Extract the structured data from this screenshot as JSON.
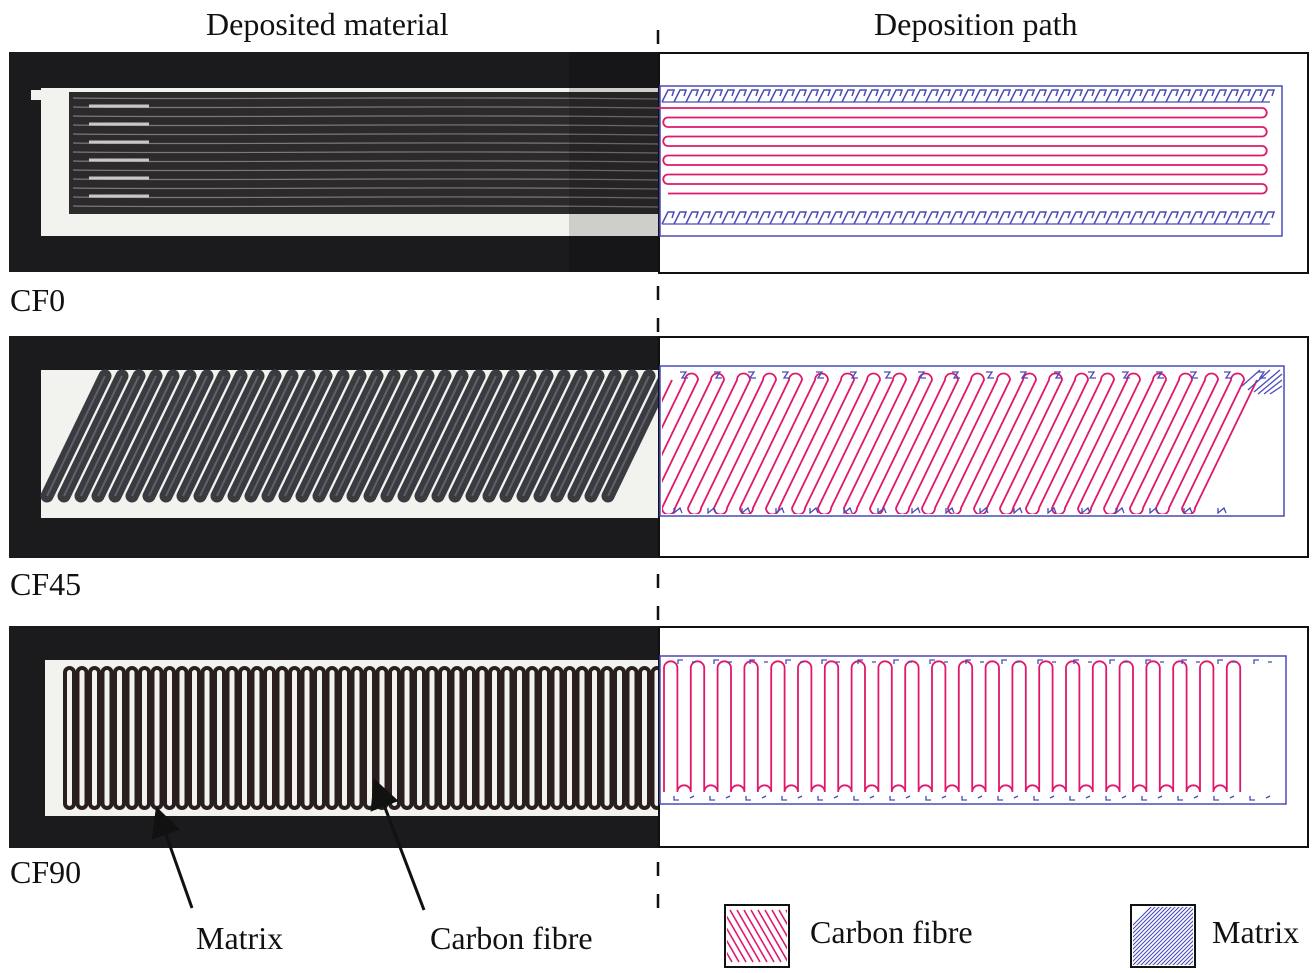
{
  "headers": {
    "left": "Deposited material",
    "right": "Deposition path"
  },
  "samples": [
    {
      "label": "CF0",
      "orientation_deg": 0
    },
    {
      "label": "CF45",
      "orientation_deg": 45
    },
    {
      "label": "CF90",
      "orientation_deg": 90
    }
  ],
  "annotations": {
    "matrix": "Matrix",
    "carbon_fibre": "Carbon fibre"
  },
  "legend": [
    {
      "key": "carbon-fibre",
      "label": "Carbon fibre",
      "color": "#e0186c"
    },
    {
      "key": "matrix",
      "label": "Matrix",
      "color": "#4a4ab8"
    }
  ],
  "colors": {
    "fibre": "#e0186c",
    "matrix": "#4a4ab8",
    "photo_background": "#1b1b1d",
    "coupon": "#f2f2ee",
    "deposited_fibre": "#2a2a2e"
  }
}
